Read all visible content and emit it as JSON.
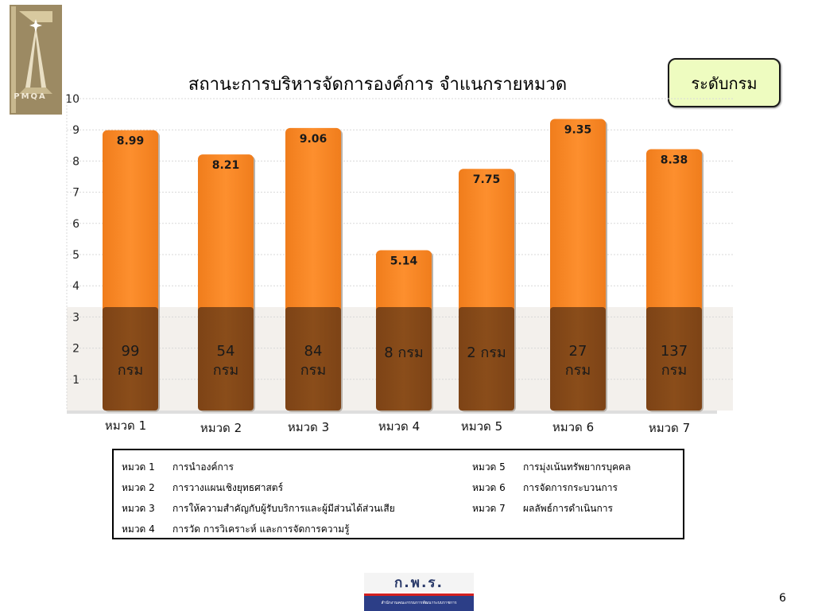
{
  "logo": {
    "text": "PMQA"
  },
  "title": "สถานะการบริหารจัดการองค์การ จำแนกรายหมวด",
  "badge": "ระดับกรม",
  "chart_data": {
    "type": "bar",
    "title": "สถานะการบริหารจัดการองค์การ จำแนกรายหมวด",
    "categories": [
      "หมวด 1",
      "หมวด 2",
      "หมวด 3",
      "หมวด 4",
      "หมวด 5",
      "หมวด 6",
      "หมวด 7"
    ],
    "values": [
      8.99,
      8.21,
      9.06,
      5.14,
      7.75,
      9.35,
      8.38
    ],
    "value_labels": [
      "8.99",
      "8.21",
      "9.06",
      "5.14",
      "7.75",
      "9.35",
      "8.38"
    ],
    "count_labels": [
      [
        "99",
        "กรม"
      ],
      [
        "54",
        "กรม"
      ],
      [
        "84",
        "กรม"
      ],
      [
        "8 กรม"
      ],
      [
        "2 กรม"
      ],
      [
        "27",
        "กรม"
      ],
      [
        "137",
        "กรม"
      ]
    ],
    "yticks": [
      1,
      2,
      3,
      4,
      5,
      6,
      7,
      8,
      9,
      10
    ],
    "ylim": [
      0,
      10
    ],
    "grid": true,
    "colors": {
      "bar_top": "#fd8f2e",
      "bar_bottom": "#8a4d1a",
      "grid": "#d8d8d8"
    }
  },
  "legend": {
    "left": [
      {
        "cat": "หมวด 1",
        "name": "การนำองค์การ"
      },
      {
        "cat": "หมวด 2",
        "name": "การวางแผนเชิงยุทธศาสตร์"
      },
      {
        "cat": "หมวด 3",
        "name": "การให้ความสำคัญกับผู้รับบริการและผู้มีส่วนได้ส่วนเสีย"
      },
      {
        "cat": "หมวด 4",
        "name": "การวัด การวิเคราะห์ และการจัดการความรู้"
      }
    ],
    "right": [
      {
        "cat": "หมวด 5",
        "name": "การมุ่งเน้นทรัพยากรบุคคล"
      },
      {
        "cat": "หมวด 6",
        "name": "การจัดการกระบวนการ"
      },
      {
        "cat": "หมวด 7",
        "name": "ผลลัพธ์การดำเนินการ"
      }
    ]
  },
  "footer_logo": {
    "text": "ก.พ.ร.",
    "subtext": "สำนักงานคณะกรรมการพัฒนาระบบราชการ"
  },
  "page_number": "6"
}
